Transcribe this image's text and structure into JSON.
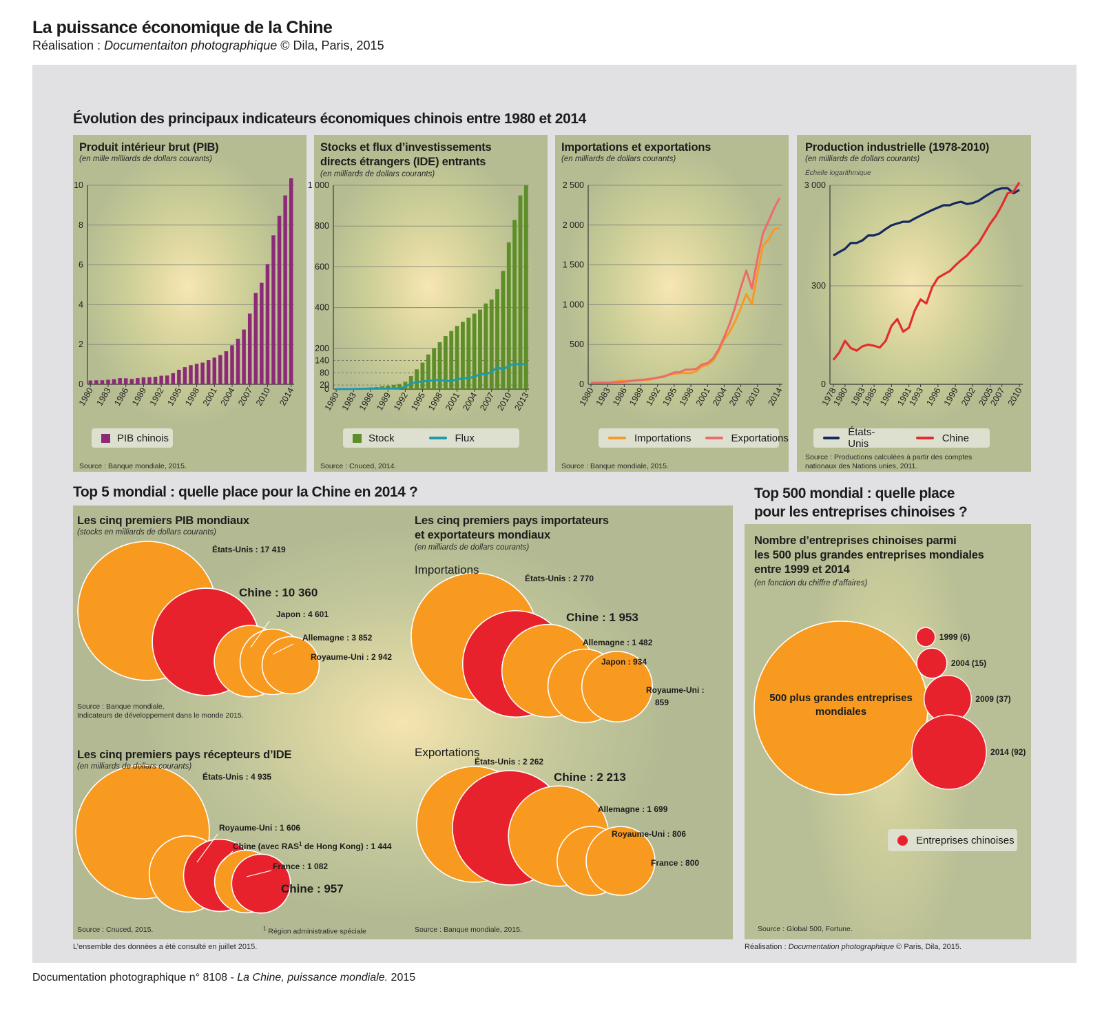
{
  "header": {
    "title": "La puissance économique de la Chine",
    "credit_prefix": "Réalisation : ",
    "credit_italic": "Documentaiton photographique",
    "credit_suffix": " © Dila, Paris, 2015"
  },
  "sections": {
    "evolution": "Évolution des principaux indicateurs économiques chinois entre 1980 et 2014",
    "top5": "Top 5 mondial : quelle place pour la Chine en 2014 ?",
    "top500_line1": "Top 500 mondial : quelle place",
    "top500_line2": "pour les entreprises chinoises ?"
  },
  "chart_data": [
    {
      "id": "pib",
      "type": "bar",
      "title": "Produit intérieur brut (PIB)",
      "subtitle": "(en mille milliards de dollars courants)",
      "x": [
        1980,
        1981,
        1982,
        1983,
        1984,
        1985,
        1986,
        1987,
        1988,
        1989,
        1990,
        1991,
        1992,
        1993,
        1994,
        1995,
        1996,
        1997,
        1998,
        1999,
        2000,
        2001,
        2002,
        2003,
        2004,
        2005,
        2006,
        2007,
        2008,
        2009,
        2010,
        2011,
        2012,
        2013,
        2014
      ],
      "x_tick_labels": [
        "1980",
        "1983",
        "1986",
        "1989",
        "1992",
        "1995",
        "1998",
        "2001",
        "2004",
        "2007",
        "2010",
        "2014"
      ],
      "x_tick_years": [
        1980,
        1983,
        1986,
        1989,
        1992,
        1995,
        1998,
        2001,
        2004,
        2007,
        2010,
        2014
      ],
      "series": [
        {
          "name": "PIB chinois",
          "color": "#8c2a78",
          "values": [
            0.19,
            0.2,
            0.2,
            0.23,
            0.26,
            0.31,
            0.3,
            0.27,
            0.31,
            0.35,
            0.36,
            0.38,
            0.43,
            0.44,
            0.56,
            0.73,
            0.86,
            0.96,
            1.03,
            1.09,
            1.21,
            1.34,
            1.47,
            1.66,
            1.96,
            2.29,
            2.75,
            3.55,
            4.59,
            5.1,
            6.04,
            7.49,
            8.46,
            9.49,
            10.35
          ]
        }
      ],
      "y_ticks": [
        0,
        2,
        4,
        6,
        8,
        10
      ],
      "y_tick_labels": [
        "0",
        "2",
        "4",
        "6",
        "8",
        "10"
      ],
      "ylim": [
        0,
        10
      ],
      "source": "Source : Banque mondiale, 2015."
    },
    {
      "id": "ide",
      "type": "bar",
      "title": "Stocks et flux d’investissements directs étrangers (IDE) entrants",
      "title_line1": "Stocks et flux d’investissements",
      "title_line2": "directs étrangers (IDE) entrants",
      "subtitle": "(en milliards de dollars courants)",
      "x": [
        1980,
        1981,
        1982,
        1983,
        1984,
        1985,
        1986,
        1987,
        1988,
        1989,
        1990,
        1991,
        1992,
        1993,
        1994,
        1995,
        1996,
        1997,
        1998,
        1999,
        2000,
        2001,
        2002,
        2003,
        2004,
        2005,
        2006,
        2007,
        2008,
        2009,
        2010,
        2011,
        2012,
        2013
      ],
      "x_tick_labels": [
        "1980",
        "1983",
        "1986",
        "1989",
        "1992",
        "1995",
        "1998",
        "2001",
        "2004",
        "2007",
        "2010",
        "2013"
      ],
      "x_tick_years": [
        1980,
        1983,
        1986,
        1989,
        1992,
        1995,
        1998,
        2001,
        2004,
        2007,
        2010,
        2013
      ],
      "series": [
        {
          "name": "Stock",
          "type": "bar",
          "color": "#5e8e2a",
          "values": [
            1,
            1,
            2,
            3,
            4,
            6,
            8,
            10,
            14,
            17,
            21,
            25,
            36,
            64,
            97,
            130,
            170,
            200,
            230,
            260,
            285,
            310,
            330,
            350,
            370,
            390,
            420,
            440,
            490,
            580,
            720,
            830,
            950,
            1000
          ]
        },
        {
          "name": "Flux",
          "type": "line",
          "color": "#1e9aaa",
          "values": [
            0.1,
            0.3,
            0.4,
            0.9,
            1.3,
            2.0,
            2.2,
            2.3,
            3.2,
            3.4,
            3.5,
            4.4,
            11,
            28,
            34,
            38,
            40,
            44,
            45,
            40,
            41,
            47,
            53,
            54,
            61,
            72,
            73,
            84,
            108,
            95,
            115,
            124,
            121,
            124
          ]
        }
      ],
      "y_ticks": [
        0,
        20,
        80,
        140,
        200,
        400,
        600,
        800,
        1000
      ],
      "y_tick_labels": [
        "0",
        "20",
        "80",
        "140",
        "200",
        "400",
        "600",
        "800",
        "1 000"
      ],
      "dashed_ticks": [
        20,
        80,
        140
      ],
      "ylim": [
        0,
        1000
      ],
      "source": "Source : Cnuced, 2014."
    },
    {
      "id": "commerce",
      "type": "line",
      "title": "Importations et exportations",
      "subtitle": "(en milliards de dollars courants)",
      "x": [
        1980,
        1981,
        1982,
        1983,
        1984,
        1985,
        1986,
        1987,
        1988,
        1989,
        1990,
        1991,
        1992,
        1993,
        1994,
        1995,
        1996,
        1997,
        1998,
        1999,
        2000,
        2001,
        2002,
        2003,
        2004,
        2005,
        2006,
        2007,
        2008,
        2009,
        2010,
        2011,
        2012,
        2013,
        2014
      ],
      "x_tick_labels": [
        "1980",
        "1983",
        "1986",
        "1989",
        "1992",
        "1995",
        "1998",
        "2001",
        "2004",
        "2007",
        "2010",
        "2014"
      ],
      "x_tick_years": [
        1980,
        1983,
        1986,
        1989,
        1992,
        1995,
        1998,
        2001,
        2004,
        2007,
        2010,
        2014
      ],
      "series": [
        {
          "name": "Importations",
          "color": "#f59a24",
          "values": [
            20,
            22,
            19,
            21,
            26,
            42,
            43,
            43,
            55,
            59,
            53,
            64,
            81,
            104,
            116,
            132,
            139,
            142,
            140,
            166,
            225,
            244,
            295,
            413,
            561,
            660,
            792,
            956,
            1132,
            1006,
            1396,
            1743,
            1818,
            1950,
            1959
          ]
        },
        {
          "name": "Exportations",
          "color": "#ec6b6b",
          "values": [
            18,
            22,
            22,
            22,
            26,
            27,
            31,
            39,
            48,
            53,
            62,
            72,
            85,
            92,
            121,
            149,
            151,
            183,
            184,
            195,
            249,
            266,
            326,
            438,
            593,
            762,
            969,
            1218,
            1429,
            1202,
            1578,
            1898,
            2049,
            2209,
            2342
          ]
        }
      ],
      "y_ticks": [
        0,
        500,
        1000,
        1500,
        2000,
        2500
      ],
      "y_tick_labels": [
        "0",
        "500",
        "1 000",
        "1 500",
        "2 000",
        "2 500"
      ],
      "ylim": [
        0,
        2500
      ],
      "source": "Source : Banque mondiale, 2015."
    },
    {
      "id": "industrie",
      "type": "line",
      "title": "Production industrielle (1978-2010)",
      "subtitle": "(en milliards de dollars courants)",
      "scale_note": "Échelle logarithmique",
      "log_scale": true,
      "x": [
        1978,
        1979,
        1980,
        1981,
        1982,
        1983,
        1984,
        1985,
        1986,
        1987,
        1988,
        1989,
        1990,
        1991,
        1992,
        1993,
        1994,
        1995,
        1996,
        1997,
        1998,
        1999,
        2000,
        2001,
        2002,
        2003,
        2004,
        2005,
        2006,
        2007,
        2008,
        2009,
        2010
      ],
      "x_tick_labels": [
        "1978",
        "1980",
        "1983",
        "1985",
        "1988",
        "1991",
        "1993",
        "1996",
        "1999",
        "2002",
        "2005",
        "2007",
        "2010"
      ],
      "x_tick_years": [
        1978,
        1980,
        1983,
        1985,
        1988,
        1991,
        1993,
        1996,
        1999,
        2002,
        2005,
        2007,
        2010
      ],
      "series": [
        {
          "name": "États-Unis",
          "color": "#14295e",
          "values": [
            600,
            650,
            700,
            800,
            800,
            850,
            950,
            950,
            1000,
            1100,
            1200,
            1250,
            1300,
            1300,
            1400,
            1500,
            1600,
            1700,
            1800,
            1900,
            1900,
            2000,
            2050,
            1950,
            2000,
            2100,
            2300,
            2500,
            2700,
            2800,
            2800,
            2500,
            2700
          ]
        },
        {
          "name": "Chine",
          "color": "#e32d2d",
          "values": [
            55,
            65,
            85,
            72,
            68,
            75,
            78,
            76,
            73,
            85,
            120,
            140,
            105,
            115,
            170,
            220,
            200,
            290,
            360,
            390,
            420,
            480,
            540,
            600,
            700,
            800,
            1000,
            1250,
            1500,
            1900,
            2500,
            2600,
            3200
          ]
        }
      ],
      "y_ticks": [
        3000,
        300,
        0
      ],
      "y_tick_labels": [
        "3 000",
        "300",
        "0"
      ],
      "source": "Source : Productions calculées à partir des comptes nationaux des Nations unies, 2011.",
      "source_line1": "Source : Productions calculées à partir des comptes",
      "source_line2": "nationaux des Nations unies, 2011."
    },
    {
      "id": "top5_pib",
      "type": "bubble",
      "title": "Les cinq premiers PIB mondiaux",
      "subtitle": "(stocks en milliards de dollars courants)",
      "items": [
        {
          "label": "États-Unis : 17 419",
          "value": 17419,
          "china": false
        },
        {
          "label": "Chine : 10 360",
          "value": 10360,
          "china": true
        },
        {
          "label": "Japon : 4 601",
          "value": 4601,
          "china": false
        },
        {
          "label": "Allemagne : 3 852",
          "value": 3852,
          "china": false
        },
        {
          "label": "Royaume-Uni : 2 942",
          "value": 2942,
          "china": false
        }
      ],
      "source_line1": "Source : Banque mondiale,",
      "source_line2": "Indicateurs de développement dans le monde 2015."
    },
    {
      "id": "top5_ide",
      "type": "bubble",
      "title": "Les cinq premiers pays récepteurs d’IDE",
      "subtitle": "(en milliards de dollars courants)",
      "items": [
        {
          "label": "États-Unis : 4 935",
          "value": 4935,
          "china": false
        },
        {
          "label": "Royaume-Uni : 1 606",
          "value": 1606,
          "china": false
        },
        {
          "label": "Chine (avec RAS¹ de Hong Kong) : 1 444",
          "label_a": "Chine (avec RAS",
          "label_sup": "1",
          "label_b": " de Hong Kong) : 1 444",
          "value": 1444,
          "china": true
        },
        {
          "label": "France : 1 082",
          "value": 1082,
          "china": false
        },
        {
          "label": "Chine : 957",
          "value": 957,
          "china": true
        }
      ],
      "footnote_sup": "1",
      "footnote": " Région administrative spéciale",
      "source": "Source : Cnuced, 2015."
    },
    {
      "id": "top5_commerce",
      "type": "bubble",
      "title": "Les cinq premiers pays importateurs et exportateurs mondiaux",
      "title_line1": "Les cinq premiers pays importateurs",
      "title_line2": "et exportateurs mondiaux",
      "subtitle": "(en milliards de dollars courants)",
      "groups": [
        {
          "name": "Importations",
          "items": [
            {
              "label": "États-Unis : 2 770",
              "value": 2770,
              "china": false
            },
            {
              "label": "Chine : 1 953",
              "value": 1953,
              "china": true
            },
            {
              "label": "Allemagne : 1 482",
              "value": 1482,
              "china": false
            },
            {
              "label": "Japon : 934",
              "value": 934,
              "china": false
            },
            {
              "label": "Royaume-Uni : 859",
              "label_a": "Royaume-Uni :",
              "label_b": "859",
              "value": 859,
              "china": false
            }
          ]
        },
        {
          "name": "Exportations",
          "items": [
            {
              "label": "États-Unis : 2 262",
              "value": 2262,
              "china": false
            },
            {
              "label": "Chine : 2 213",
              "value": 2213,
              "china": true
            },
            {
              "label": "Allemagne : 1 699",
              "value": 1699,
              "china": false
            },
            {
              "label": "Royaume-Uni : 806",
              "value": 806,
              "china": false
            },
            {
              "label": "France : 800",
              "value": 800,
              "china": false
            }
          ]
        }
      ],
      "source": "Source : Banque mondiale, 2015."
    },
    {
      "id": "top500",
      "type": "bubble",
      "title": "Nombre d’entreprises chinoises parmi les 500 plus grandes entreprises mondiales entre 1999 et 2014",
      "title_line1": "Nombre d’entreprises chinoises parmi",
      "title_line2": "les 500 plus grandes entreprises mondiales",
      "title_line3": "entre 1999 et 2014",
      "subtitle": "(en fonction du chiffre d’affaires)",
      "total": {
        "label_line1": "500 plus grandes entreprises",
        "label_line2": "mondiales",
        "value": 500
      },
      "items": [
        {
          "year": 1999,
          "label": "1999 (6)",
          "value": 6
        },
        {
          "year": 2004,
          "label": "2004 (15)",
          "value": 15
        },
        {
          "year": 2009,
          "label": "2009 (37)",
          "value": 37
        },
        {
          "year": 2014,
          "label": "2014 (92)",
          "value": 92
        }
      ],
      "legend": "Entreprises chinoises",
      "source": "Source : Global 500, Fortune."
    }
  ],
  "colors": {
    "orange": "#f79a1f",
    "red": "#e8222d",
    "panel": "#b4bb8f"
  },
  "footer": {
    "note": "L’ensemble des données a été consulté en juillet 2015.",
    "credit_prefix": "Réalisation : ",
    "credit_italic": "Documentation photographique",
    "credit_suffix": " © Paris, Dila, 2015.",
    "bottom_prefix": "Documentation photographique n° 8108 - ",
    "bottom_italic": "La Chine, puissance mondiale.",
    "bottom_suffix": " 2015"
  }
}
